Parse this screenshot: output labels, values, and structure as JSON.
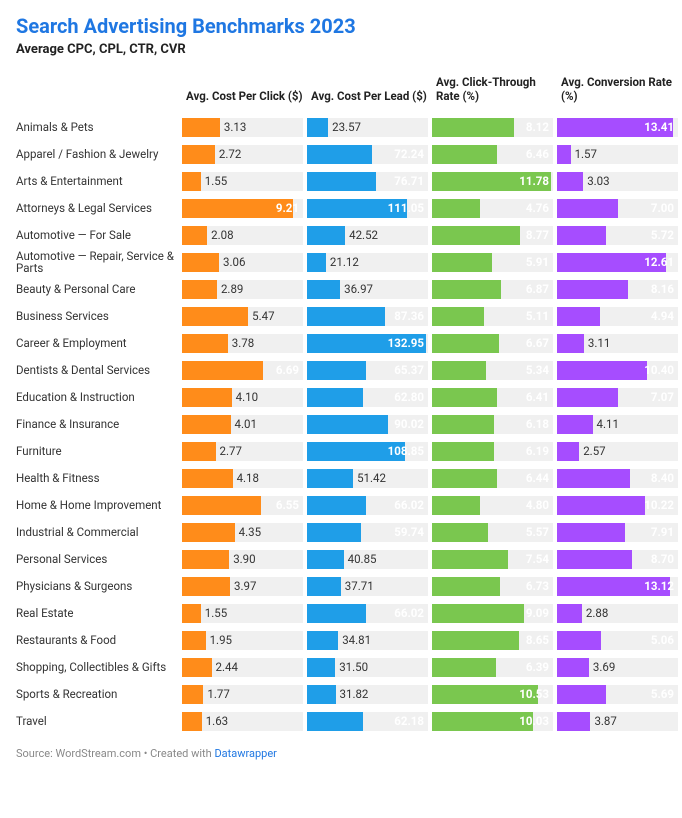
{
  "title": "Search Advertising Benchmarks 2023",
  "title_color": "#1f77e2",
  "subtitle": "Average CPC, CPL, CTR, CVR",
  "source_prefix": "Source: WordStream.com • Created with ",
  "source_link_text": "Datawrapper",
  "background_color": "#ffffff",
  "track_color": "#f0f0f0",
  "columns": [
    {
      "key": "cpc",
      "label": "Avg. Cost Per Click ($)",
      "color": "#ff8c1a",
      "max": 10,
      "decimals": 2,
      "inside_threshold": 0.55
    },
    {
      "key": "cpl",
      "label": "Avg. Cost Per Lead ($)",
      "color": "#1f9ee8",
      "max": 135,
      "decimals": 2,
      "inside_threshold": 0.42
    },
    {
      "key": "ctr",
      "label": "Avg. Click-Through Rate (%)",
      "color": "#7ac74f",
      "max": 12,
      "decimals": 2,
      "inside_threshold": 0.38
    },
    {
      "key": "cvr",
      "label": "Avg. Conversion Rate (%)",
      "color": "#a64dff",
      "max": 14,
      "decimals": 2,
      "inside_threshold": 0.34
    }
  ],
  "rows": [
    {
      "label": "Animals & Pets",
      "cpc": 3.13,
      "cpl": 23.57,
      "ctr": 8.12,
      "cvr": 13.41
    },
    {
      "label": "Apparel / Fashion & Jewelry",
      "cpc": 2.72,
      "cpl": 72.24,
      "ctr": 6.46,
      "cvr": 1.57
    },
    {
      "label": "Arts & Entertainment",
      "cpc": 1.55,
      "cpl": 76.71,
      "ctr": 11.78,
      "cvr": 3.03
    },
    {
      "label": "Attorneys & Legal Services",
      "cpc": 9.21,
      "cpl": 111.05,
      "ctr": 4.76,
      "cvr": 7.0
    },
    {
      "label": "Automotive — For Sale",
      "cpc": 2.08,
      "cpl": 42.52,
      "ctr": 8.77,
      "cvr": 5.72
    },
    {
      "label": "Automotive — Repair, Service & Parts",
      "cpc": 3.06,
      "cpl": 21.12,
      "ctr": 5.91,
      "cvr": 12.61
    },
    {
      "label": "Beauty & Personal Care",
      "cpc": 2.89,
      "cpl": 36.97,
      "ctr": 6.87,
      "cvr": 8.16
    },
    {
      "label": "Business Services",
      "cpc": 5.47,
      "cpl": 87.36,
      "ctr": 5.11,
      "cvr": 4.94
    },
    {
      "label": "Career & Employment",
      "cpc": 3.78,
      "cpl": 132.95,
      "ctr": 6.67,
      "cvr": 3.11
    },
    {
      "label": "Dentists & Dental Services",
      "cpc": 6.69,
      "cpl": 65.37,
      "ctr": 5.34,
      "cvr": 10.4
    },
    {
      "label": "Education & Instruction",
      "cpc": 4.1,
      "cpl": 62.8,
      "ctr": 6.41,
      "cvr": 7.07
    },
    {
      "label": "Finance & Insurance",
      "cpc": 4.01,
      "cpl": 90.02,
      "ctr": 6.18,
      "cvr": 4.11
    },
    {
      "label": "Furniture",
      "cpc": 2.77,
      "cpl": 108.85,
      "ctr": 6.19,
      "cvr": 2.57
    },
    {
      "label": "Health & Fitness",
      "cpc": 4.18,
      "cpl": 51.42,
      "ctr": 6.44,
      "cvr": 8.4
    },
    {
      "label": "Home & Home Improvement",
      "cpc": 6.55,
      "cpl": 66.02,
      "ctr": 4.8,
      "cvr": 10.22
    },
    {
      "label": "Industrial & Commercial",
      "cpc": 4.35,
      "cpl": 59.74,
      "ctr": 5.57,
      "cvr": 7.91
    },
    {
      "label": "Personal Services",
      "cpc": 3.9,
      "cpl": 40.85,
      "ctr": 7.54,
      "cvr": 8.7
    },
    {
      "label": "Physicians & Surgeons",
      "cpc": 3.97,
      "cpl": 37.71,
      "ctr": 6.73,
      "cvr": 13.12
    },
    {
      "label": "Real Estate",
      "cpc": 1.55,
      "cpl": 66.02,
      "ctr": 9.09,
      "cvr": 2.88
    },
    {
      "label": "Restaurants & Food",
      "cpc": 1.95,
      "cpl": 34.81,
      "ctr": 8.65,
      "cvr": 5.06
    },
    {
      "label": "Shopping, Collectibles & Gifts",
      "cpc": 2.44,
      "cpl": 31.5,
      "ctr": 6.39,
      "cvr": 3.69
    },
    {
      "label": "Sports & Recreation",
      "cpc": 1.77,
      "cpl": 31.82,
      "ctr": 10.53,
      "cvr": 5.69
    },
    {
      "label": "Travel",
      "cpc": 1.63,
      "cpl": 62.18,
      "ctr": 10.03,
      "cvr": 3.87
    }
  ]
}
